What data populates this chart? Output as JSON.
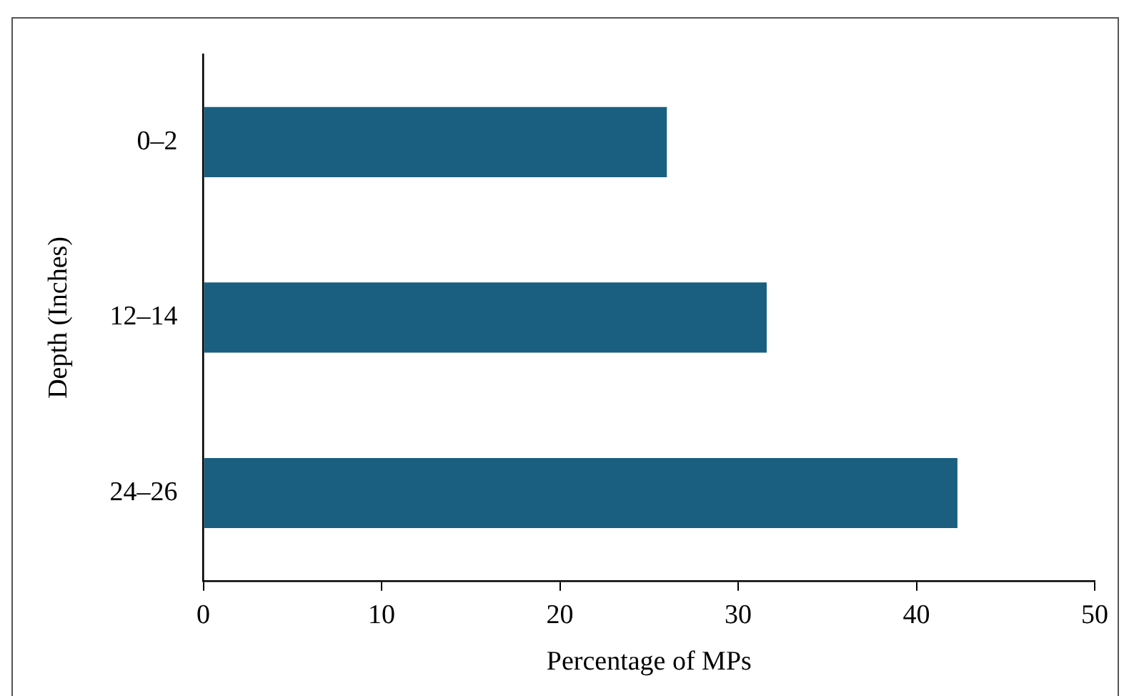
{
  "chart_data": {
    "type": "bar",
    "orientation": "horizontal",
    "xlabel": "Percentage of MPs",
    "ylabel": "Depth (Inches)",
    "categories": [
      "0–2",
      "12–14",
      "24–26"
    ],
    "values": [
      26.0,
      31.6,
      42.3
    ],
    "color": "#1a5f80",
    "xlim": [
      0,
      50
    ],
    "xticks": [
      0,
      10,
      20,
      30,
      40,
      50
    ],
    "grid": false,
    "legend": false
  }
}
